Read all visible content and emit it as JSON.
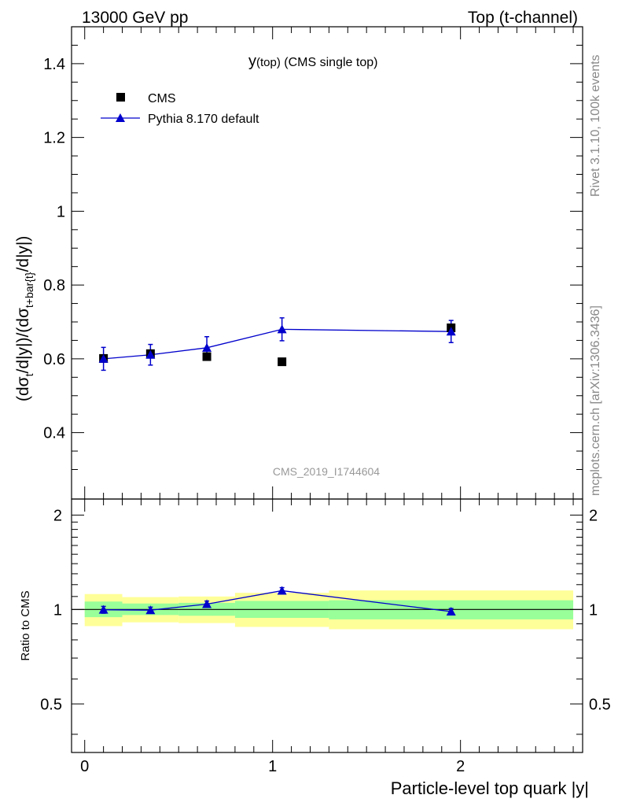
{
  "header": {
    "energy_label": "13000 GeV pp",
    "process_label": "Top (t-channel)"
  },
  "side_labels": {
    "rivet": "Rivet 3.1.10,  100k events",
    "mcplots": "mcplots.cern.ch [arXiv:1306.3436]"
  },
  "chart_data": [
    {
      "type": "scatter",
      "panel": "main",
      "title_main": "y",
      "title_sub": "(top)",
      "title_rest": " (CMS single top)",
      "analysis_tag": "CMS_2019_I1744604",
      "ylabel": "(dσt/d|y|)/(dσt+bar{t}/d|y|)",
      "ylabel_parts": {
        "p1": "(dσ",
        "s1": "t",
        "p2": "/d|y|)/(dσ",
        "s2": "t+bar{t}",
        "p3": "/d|y|)"
      },
      "xlim": [
        -0.07,
        2.65
      ],
      "ylim": [
        0.22,
        1.5
      ],
      "yticks": [
        0.4,
        0.6,
        0.8,
        1,
        1.2,
        1.4
      ],
      "ytick_labels": [
        "0.4",
        "0.6",
        "0.8",
        "1",
        "1.2",
        "1.4"
      ],
      "legend": {
        "placement": "top-left",
        "entries": [
          "CMS",
          "Pythia 8.170 default"
        ]
      },
      "series": [
        {
          "name": "CMS",
          "marker": "square",
          "color": "#000000",
          "x": [
            0.1,
            0.35,
            0.65,
            1.05,
            1.95
          ],
          "y": [
            0.601,
            0.614,
            0.606,
            0.592,
            0.684
          ]
        },
        {
          "name": "Pythia 8.170 default",
          "marker": "triangle",
          "color": "#0000cc",
          "x": [
            0.1,
            0.35,
            0.65,
            1.05,
            1.95
          ],
          "y": [
            0.6,
            0.611,
            0.63,
            0.68,
            0.674
          ],
          "yerr": [
            0.031,
            0.028,
            0.03,
            0.031,
            0.03
          ]
        }
      ]
    },
    {
      "type": "scatter",
      "panel": "ratio",
      "ylabel": "Ratio to CMS",
      "xlabel": "Particle-level top quark |y|",
      "ylim": [
        0.35,
        2.25
      ],
      "yticks": [
        0.5,
        1,
        2
      ],
      "ytick_labels": [
        "0.5",
        "1",
        "2"
      ],
      "xticks": [
        0,
        1,
        2
      ],
      "xtick_labels": [
        "0",
        "1",
        "2"
      ],
      "bands": [
        {
          "xlo": 0.0,
          "xhi": 0.2,
          "inner": [
            0.945,
            1.06
          ],
          "outer": [
            0.885,
            1.12
          ]
        },
        {
          "xlo": 0.2,
          "xhi": 0.5,
          "inner": [
            0.96,
            1.045
          ],
          "outer": [
            0.91,
            1.095
          ]
        },
        {
          "xlo": 0.5,
          "xhi": 0.8,
          "inner": [
            0.955,
            1.05
          ],
          "outer": [
            0.905,
            1.1
          ]
        },
        {
          "xlo": 0.8,
          "xhi": 1.3,
          "inner": [
            0.94,
            1.065
          ],
          "outer": [
            0.88,
            1.13
          ]
        },
        {
          "xlo": 1.3,
          "xhi": 2.6,
          "inner": [
            0.93,
            1.07
          ],
          "outer": [
            0.865,
            1.15
          ]
        }
      ],
      "series": [
        {
          "name": "Pythia 8.170 default",
          "color": "#0000cc",
          "x": [
            0.1,
            0.35,
            0.65,
            1.05,
            1.95
          ],
          "y": [
            0.998,
            0.995,
            1.04,
            1.148,
            0.985
          ],
          "yerr": [
            0.05,
            0.045,
            0.048,
            0.052,
            0.044
          ]
        }
      ]
    }
  ]
}
